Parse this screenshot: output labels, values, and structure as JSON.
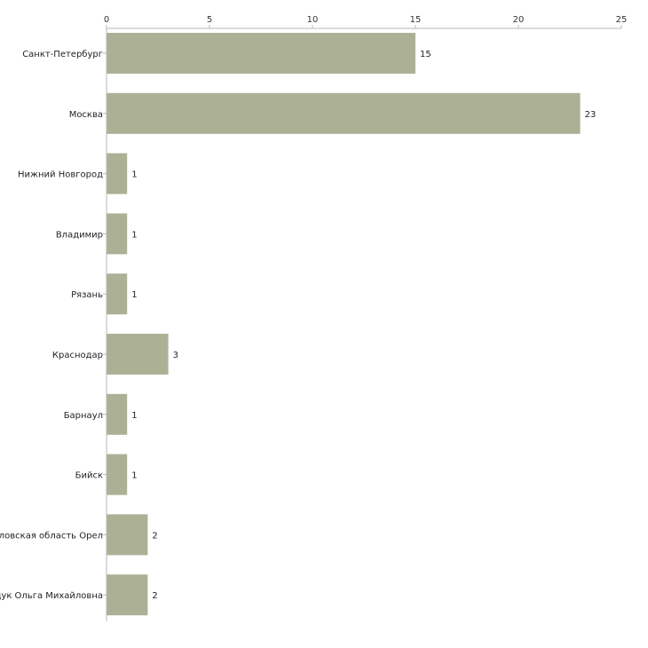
{
  "chart_data": {
    "type": "bar",
    "orientation": "horizontal",
    "title": "",
    "xlabel": "",
    "ylabel": "",
    "xlim": [
      0,
      25
    ],
    "x_ticks": [
      0,
      5,
      10,
      15,
      20,
      25
    ],
    "grid": false,
    "legend": "none",
    "bar_color": "#acb196",
    "categories": [
      "Санкт-Петербург",
      "Москва",
      "Нижний Новгород",
      "Владимир",
      "Рязань",
      "Краснодар",
      "Барнаул",
      "Бийск",
      "Орловская область Орел",
      "Кузнецук Ольга Михайловна"
    ],
    "values": [
      15,
      23,
      1,
      1,
      1,
      3,
      1,
      1,
      2,
      2
    ]
  }
}
